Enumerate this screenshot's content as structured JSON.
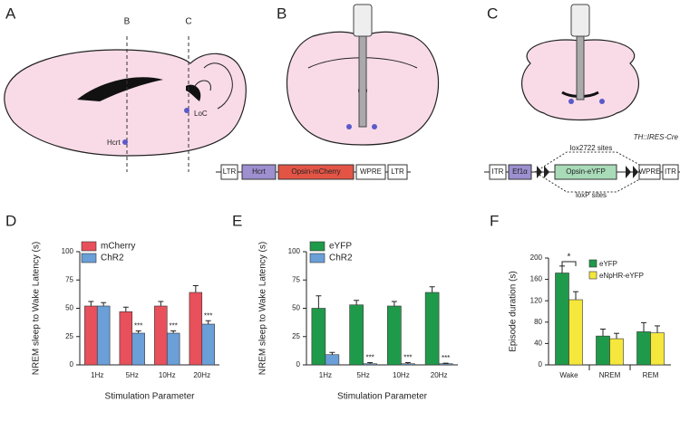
{
  "diagrams": {
    "A": {
      "panel": "A",
      "cut_b": "B",
      "cut_c": "C",
      "hcrt": "Hcrt",
      "loc": "LoC"
    },
    "B": {
      "panel": "B",
      "construct": [
        "LTR",
        "Hcrt",
        "Opsin-mCherry",
        "WPRE",
        "LTR"
      ]
    },
    "C": {
      "panel": "C",
      "mouse": "TH::IRES-Cre",
      "lox2722": "lox2722 sites",
      "loxp": "loxP sites",
      "construct": [
        "ITR",
        "Ef1α",
        "Opsin-eYFP",
        "WPRE",
        "ITR"
      ]
    }
  },
  "chart_data": [
    {
      "type": "bar",
      "panel": "D",
      "xlabel": "Stimulation Parameter",
      "ylabel": "NREM sleep to Wake Latency (s)",
      "categories": [
        "1Hz",
        "5Hz",
        "10Hz",
        "20Hz"
      ],
      "ylim": [
        0,
        100
      ],
      "yticks": [
        0,
        25,
        50,
        75,
        100
      ],
      "series": [
        {
          "name": "mCherry",
          "color": "#e8505b",
          "values": [
            52,
            47,
            52,
            64
          ],
          "errors": [
            4,
            4,
            4,
            6
          ],
          "labels": [
            null,
            null,
            null,
            null
          ]
        },
        {
          "name": "ChR2",
          "color": "#6a9fd8",
          "values": [
            52,
            28,
            28,
            36
          ],
          "errors": [
            3,
            2,
            2,
            3
          ],
          "labels": [
            null,
            "***",
            "***",
            "***"
          ]
        }
      ]
    },
    {
      "type": "bar",
      "panel": "E",
      "xlabel": "Stimulation Parameter",
      "ylabel": "NREM sleep to Wake Latency (s)",
      "categories": [
        "1Hz",
        "5Hz",
        "10Hz",
        "20Hz"
      ],
      "ylim": [
        0,
        100
      ],
      "yticks": [
        0,
        25,
        50,
        75,
        100
      ],
      "series": [
        {
          "name": "eYFP",
          "color": "#1f9a4a",
          "values": [
            50,
            53,
            52,
            64
          ],
          "errors": [
            11,
            4,
            4,
            5
          ],
          "labels": [
            null,
            null,
            null,
            null
          ]
        },
        {
          "name": "ChR2",
          "color": "#6a9fd8",
          "values": [
            9,
            1,
            1,
            1
          ],
          "errors": [
            2,
            1,
            1,
            0.5
          ],
          "labels": [
            null,
            "***",
            "***",
            "***"
          ]
        }
      ]
    },
    {
      "type": "bar",
      "panel": "F",
      "ylabel": "Episode duration (s)",
      "bracket_label": "*",
      "categories": [
        "Wake",
        "NREM",
        "REM"
      ],
      "ylim": [
        0,
        200
      ],
      "yticks": [
        0,
        40,
        80,
        120,
        160,
        200
      ],
      "series": [
        {
          "name": "eYFP",
          "color": "#1f9a4a",
          "values": [
            172,
            54,
            62
          ],
          "errors": [
            13,
            13,
            17
          ],
          "labels": [
            null,
            null,
            null
          ]
        },
        {
          "name": "eNpHR-eYFP",
          "color": "#f5e73c",
          "values": [
            122,
            49,
            60
          ],
          "errors": [
            15,
            10,
            13
          ],
          "labels": [
            null,
            null,
            null
          ]
        }
      ]
    }
  ]
}
